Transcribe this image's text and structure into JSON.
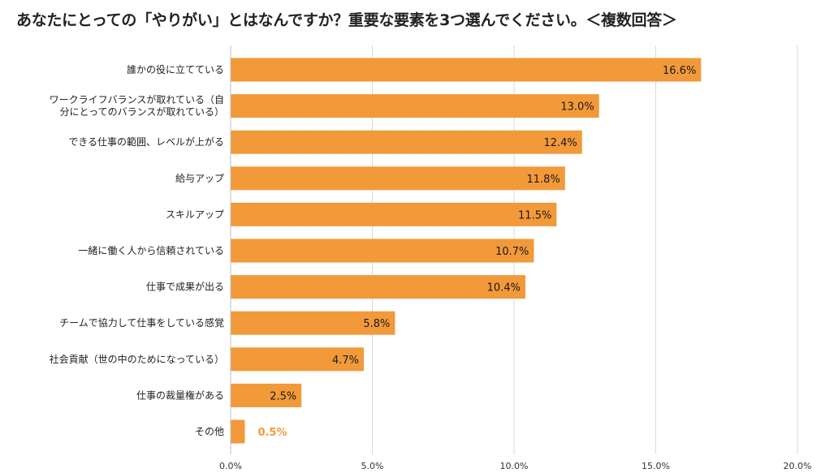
{
  "chart_data": {
    "type": "bar",
    "orientation": "horizontal",
    "title": "あなたにとっての「やりがい」とはなんですか？重要な要素を3つ選んでください。＜複数回答＞",
    "categories": [
      [
        "誰かの役に立てている"
      ],
      [
        "ワークライフバランスが取れている（自",
        "分にとってのバランスが取れている）"
      ],
      [
        "できる仕事の範囲、レベルが上がる"
      ],
      [
        "給与アップ"
      ],
      [
        "スキルアップ"
      ],
      [
        "一緒に働く人から信頼されている"
      ],
      [
        "仕事で成果が出る"
      ],
      [
        "チームで協力して仕事をしている感覚"
      ],
      [
        "社会貢献（世の中のためになっている）"
      ],
      [
        "仕事の裁量権がある"
      ],
      [
        "その他"
      ]
    ],
    "values": [
      16.6,
      13.0,
      12.4,
      11.8,
      11.5,
      10.7,
      10.4,
      5.8,
      4.7,
      2.5,
      0.5
    ],
    "value_labels": [
      "16.6%",
      "13.0%",
      "12.4%",
      "11.8%",
      "11.5%",
      "10.7%",
      "10.4%",
      "5.8%",
      "4.7%",
      "2.5%",
      "0.5%"
    ],
    "xlim": [
      0,
      20
    ],
    "xticks": [
      0,
      5,
      10,
      15,
      20
    ],
    "xtick_labels": [
      "0.0%",
      "5.0%",
      "10.0%",
      "15.0%",
      "20.0%"
    ],
    "xlabel": "",
    "ylabel": "",
    "grid": true,
    "legend": "none",
    "colors": {
      "bar": "#F2993A",
      "label_inside": "#1a1a1a",
      "label_outside": "#F2993A",
      "grid": "#d9d9d9"
    }
  }
}
